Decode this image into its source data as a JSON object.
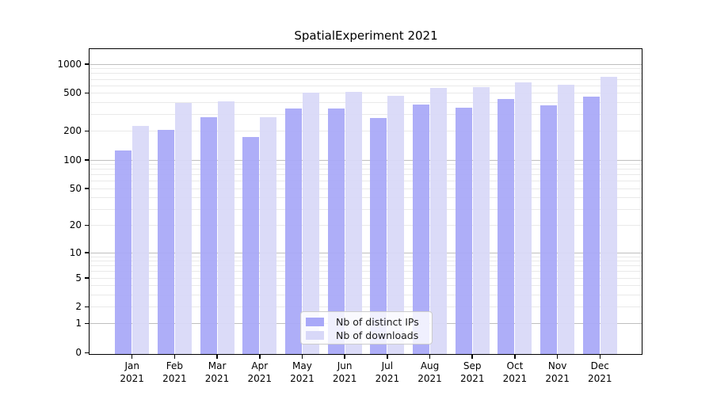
{
  "chart_data": {
    "type": "bar",
    "title": "SpatialExperiment 2021",
    "categories": [
      "Jan",
      "Feb",
      "Mar",
      "Apr",
      "May",
      "Jun",
      "Jul",
      "Aug",
      "Sep",
      "Oct",
      "Nov",
      "Dec"
    ],
    "year_label": "2021",
    "series": [
      {
        "name": "Nb of distinct IPs",
        "color": "#a8a8f8",
        "values": [
          125,
          205,
          276,
          172,
          345,
          346,
          272,
          378,
          352,
          432,
          370,
          453
        ]
      },
      {
        "name": "Nb of downloads",
        "color": "#d8d8f8",
        "values": [
          228,
          390,
          405,
          281,
          505,
          512,
          470,
          560,
          576,
          640,
          604,
          735
        ]
      }
    ],
    "xlabel": "",
    "ylabel": "",
    "yscale": "log1p",
    "yticks": [
      0,
      1,
      2,
      5,
      10,
      20,
      50,
      100,
      200,
      500,
      1000
    ],
    "ylim": [
      0,
      1100
    ],
    "grid": "horizontal minor+major (log decades darker)",
    "legend_position": "inside bottom-center"
  },
  "colors": {
    "grid_minor": "#e9e9e9",
    "grid_major": "#bfbfbf",
    "spine": "#000000",
    "background": "#ffffff"
  }
}
